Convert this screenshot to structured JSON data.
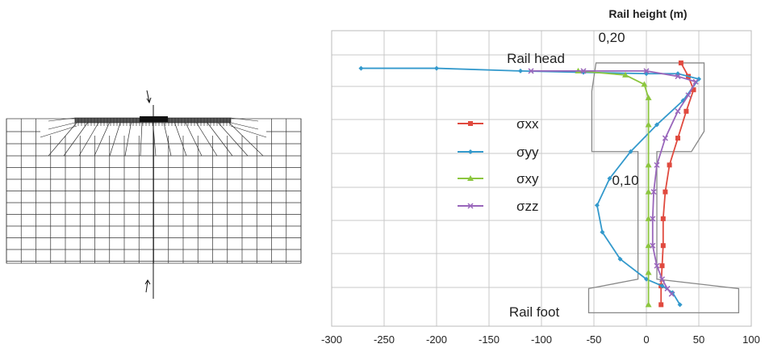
{
  "chart_data": {
    "type": "line",
    "title": "Rail height (m)",
    "xlim": [
      -300,
      100
    ],
    "ylim": [
      0,
      0.22
    ],
    "x_ticks": [
      "-300",
      "-250",
      "-200",
      "-150",
      "-100",
      "-50",
      "0",
      "50",
      "100"
    ],
    "grid": true,
    "legend_placement": "center",
    "annotations": {
      "top_value": "0,20",
      "mid_value": "0,10",
      "rail_head": "Rail head",
      "rail_foot": "Rail foot"
    },
    "series": [
      {
        "name": "σxx",
        "color": "#e04a3f",
        "marker": "square",
        "points": [
          [
            33,
            0.196
          ],
          [
            40,
            0.186
          ],
          [
            45,
            0.176
          ],
          [
            38,
            0.16
          ],
          [
            30,
            0.14
          ],
          [
            22,
            0.12
          ],
          [
            18,
            0.1
          ],
          [
            16,
            0.08
          ],
          [
            16,
            0.06
          ],
          [
            15,
            0.045
          ],
          [
            14,
            0.03
          ],
          [
            14,
            0.016
          ]
        ]
      },
      {
        "name": "σyy",
        "color": "#3399cc",
        "marker": "diamond",
        "points": [
          [
            -272,
            0.192
          ],
          [
            -200,
            0.192
          ],
          [
            -120,
            0.19
          ],
          [
            -60,
            0.189
          ],
          [
            0,
            0.188
          ],
          [
            30,
            0.188
          ],
          [
            50,
            0.184
          ],
          [
            35,
            0.168
          ],
          [
            10,
            0.15
          ],
          [
            -15,
            0.13
          ],
          [
            -35,
            0.11
          ],
          [
            -47,
            0.09
          ],
          [
            -42,
            0.07
          ],
          [
            -25,
            0.05
          ],
          [
            0,
            0.035
          ],
          [
            15,
            0.03
          ],
          [
            25,
            0.025
          ],
          [
            32,
            0.016
          ]
        ]
      },
      {
        "name": "σxy",
        "color": "#8cc63f",
        "marker": "triangle",
        "points": [
          [
            -65,
            0.19
          ],
          [
            -20,
            0.187
          ],
          [
            -2,
            0.18
          ],
          [
            2,
            0.17
          ],
          [
            2,
            0.15
          ],
          [
            2,
            0.12
          ],
          [
            2,
            0.1
          ],
          [
            2,
            0.08
          ],
          [
            2,
            0.06
          ],
          [
            2,
            0.04
          ],
          [
            2,
            0.016
          ]
        ]
      },
      {
        "name": "σzz",
        "color": "#9966bb",
        "marker": "x",
        "points": [
          [
            -110,
            0.19
          ],
          [
            -60,
            0.19
          ],
          [
            0,
            0.19
          ],
          [
            30,
            0.186
          ],
          [
            47,
            0.182
          ],
          [
            40,
            0.172
          ],
          [
            30,
            0.16
          ],
          [
            18,
            0.14
          ],
          [
            10,
            0.12
          ],
          [
            7,
            0.1
          ],
          [
            6,
            0.08
          ],
          [
            6,
            0.06
          ],
          [
            10,
            0.045
          ],
          [
            15,
            0.035
          ],
          [
            20,
            0.028
          ],
          [
            24,
            0.024
          ]
        ]
      }
    ]
  },
  "mesh_figure": {
    "caption": ""
  }
}
